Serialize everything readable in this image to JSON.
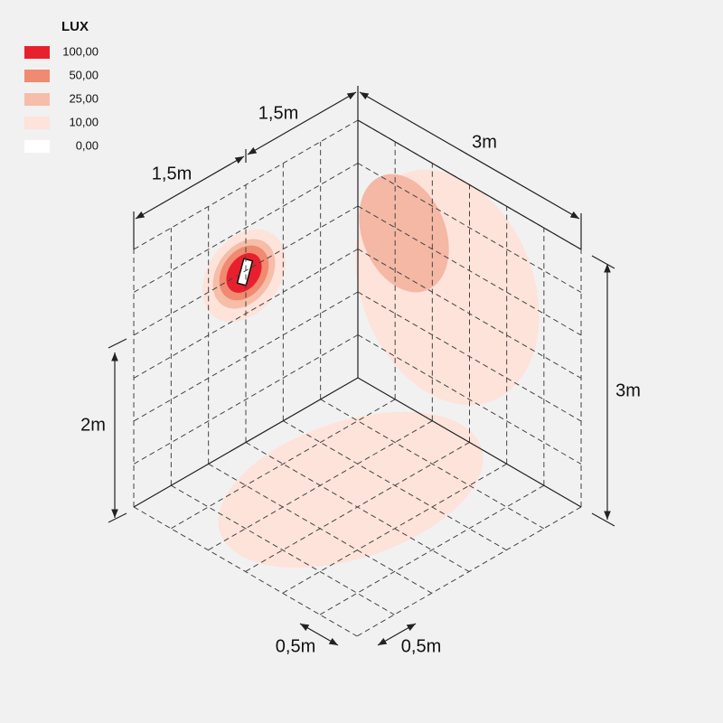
{
  "legend": {
    "title": "LUX",
    "items": [
      {
        "label": "100,00",
        "color": "#e8202e"
      },
      {
        "label": "50,00",
        "color": "#f08a70"
      },
      {
        "label": "25,00",
        "color": "#f6bda8"
      },
      {
        "label": "10,00",
        "color": "#fde3da"
      },
      {
        "label": "0,00",
        "color": "#ffffff"
      }
    ]
  },
  "dimensions": {
    "left_width_a": "1,5m",
    "left_width_b": "1,5m",
    "right_width": "3m",
    "right_height": "3m",
    "left_height": "2m",
    "floor_cell_left": "0,5m",
    "floor_cell_right": "0,5m"
  }
}
